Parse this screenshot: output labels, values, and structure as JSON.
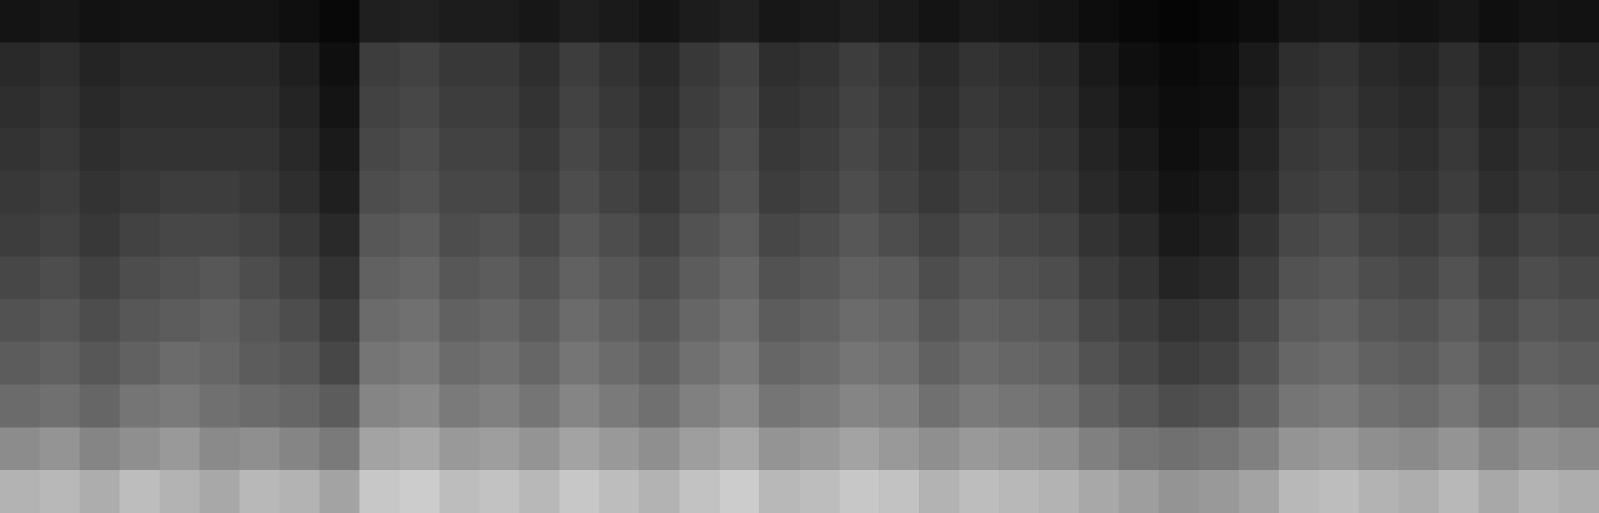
{
  "chart_data": {
    "type": "heatmap",
    "tick_labels": false,
    "grid": false,
    "legend": "none",
    "zlim": [
      0,
      100
    ],
    "z": [
      [
        70,
        72,
        68,
        74,
        70,
        66,
        72,
        70,
        64,
        78,
        80,
        74,
        76,
        72,
        78,
        74,
        70,
        76,
        80,
        72,
        74,
        78,
        76,
        70,
        74,
        72,
        70,
        66,
        62,
        58,
        60,
        64,
        72,
        74,
        70,
        68,
        72,
        66,
        70,
        68
      ],
      [
        55,
        58,
        52,
        56,
        60,
        54,
        56,
        52,
        48,
        64,
        66,
        60,
        62,
        58,
        64,
        60,
        56,
        62,
        66,
        58,
        60,
        64,
        60,
        56,
        60,
        58,
        56,
        50,
        46,
        44,
        46,
        50,
        58,
        60,
        56,
        54,
        58,
        52,
        56,
        54
      ],
      [
        42,
        44,
        40,
        46,
        48,
        44,
        42,
        40,
        36,
        52,
        54,
        48,
        50,
        46,
        52,
        48,
        44,
        50,
        54,
        46,
        48,
        52,
        50,
        44,
        48,
        46,
        44,
        38,
        34,
        30,
        32,
        38,
        46,
        48,
        44,
        42,
        46,
        40,
        44,
        42
      ],
      [
        36,
        38,
        34,
        38,
        42,
        40,
        36,
        34,
        28,
        46,
        48,
        42,
        44,
        40,
        46,
        42,
        38,
        44,
        48,
        40,
        42,
        46,
        44,
        38,
        42,
        40,
        38,
        32,
        28,
        24,
        26,
        32,
        40,
        42,
        38,
        36,
        40,
        34,
        38,
        36
      ],
      [
        32,
        34,
        30,
        34,
        36,
        38,
        34,
        30,
        24,
        42,
        44,
        38,
        40,
        36,
        42,
        38,
        34,
        40,
        44,
        36,
        38,
        42,
        40,
        34,
        38,
        36,
        34,
        28,
        24,
        20,
        22,
        28,
        36,
        38,
        34,
        32,
        36,
        30,
        34,
        32
      ],
      [
        28,
        30,
        26,
        30,
        32,
        34,
        30,
        26,
        20,
        38,
        40,
        34,
        36,
        32,
        38,
        34,
        30,
        36,
        40,
        32,
        34,
        38,
        36,
        30,
        34,
        32,
        30,
        24,
        20,
        14,
        16,
        24,
        32,
        34,
        30,
        28,
        32,
        26,
        30,
        28
      ],
      [
        24,
        26,
        22,
        26,
        28,
        28,
        26,
        22,
        16,
        34,
        36,
        30,
        32,
        28,
        34,
        30,
        26,
        32,
        36,
        28,
        30,
        34,
        30,
        26,
        30,
        28,
        26,
        20,
        16,
        10,
        12,
        20,
        28,
        30,
        26,
        24,
        28,
        22,
        26,
        24
      ],
      [
        22,
        24,
        20,
        22,
        24,
        24,
        22,
        18,
        12,
        30,
        32,
        28,
        28,
        24,
        30,
        26,
        22,
        28,
        32,
        24,
        26,
        30,
        26,
        22,
        26,
        24,
        22,
        16,
        12,
        8,
        10,
        16,
        24,
        26,
        22,
        20,
        24,
        18,
        22,
        20
      ],
      [
        20,
        22,
        18,
        20,
        20,
        20,
        20,
        16,
        10,
        28,
        30,
        26,
        26,
        22,
        28,
        24,
        20,
        26,
        30,
        22,
        24,
        28,
        24,
        20,
        24,
        22,
        20,
        14,
        10,
        6,
        8,
        14,
        22,
        24,
        20,
        18,
        22,
        16,
        20,
        18
      ],
      [
        18,
        20,
        16,
        18,
        18,
        18,
        18,
        14,
        8,
        26,
        28,
        24,
        24,
        20,
        26,
        22,
        18,
        24,
        28,
        20,
        22,
        26,
        22,
        18,
        22,
        20,
        18,
        12,
        8,
        5,
        6,
        12,
        20,
        22,
        18,
        16,
        20,
        14,
        18,
        16
      ],
      [
        16,
        18,
        14,
        16,
        16,
        16,
        16,
        12,
        6,
        24,
        26,
        22,
        22,
        18,
        24,
        20,
        16,
        22,
        26,
        18,
        20,
        24,
        20,
        16,
        20,
        18,
        16,
        10,
        6,
        4,
        5,
        10,
        18,
        20,
        16,
        14,
        18,
        12,
        16,
        14
      ],
      [
        8,
        9,
        7,
        8,
        8,
        8,
        8,
        6,
        3,
        12,
        13,
        11,
        11,
        9,
        12,
        10,
        8,
        11,
        13,
        9,
        10,
        12,
        10,
        8,
        10,
        9,
        8,
        5,
        3,
        2,
        3,
        5,
        9,
        10,
        8,
        7,
        9,
        6,
        8,
        7
      ]
    ]
  }
}
